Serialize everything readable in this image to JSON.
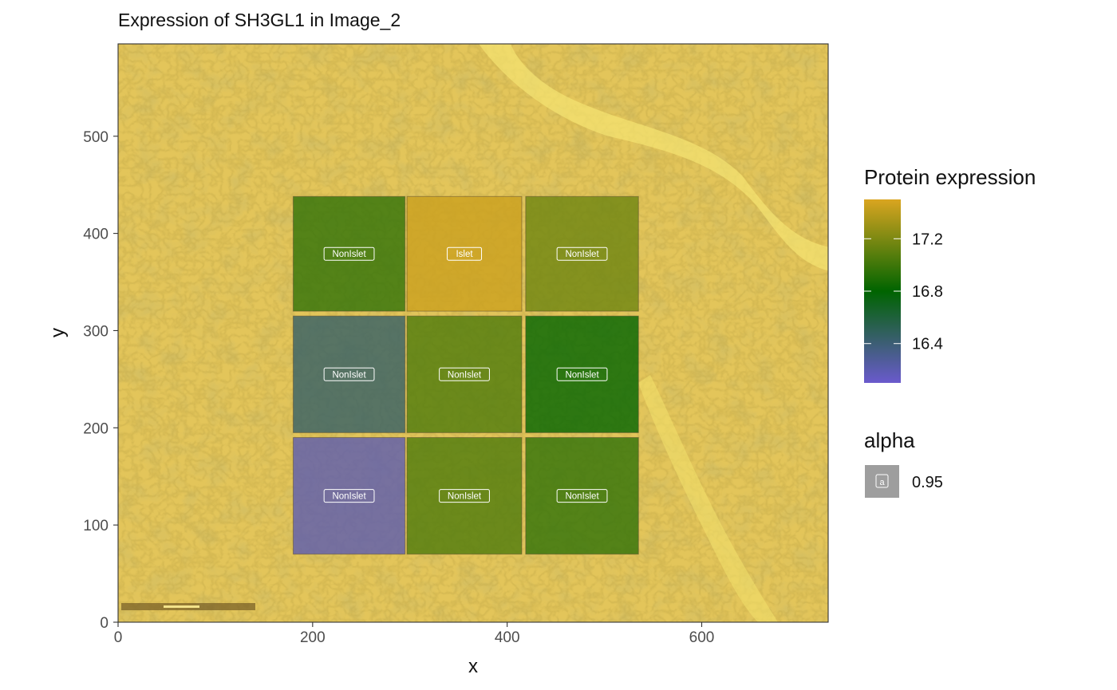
{
  "chart_data": {
    "type": "heatmap",
    "title": "Expression of SH3GL1 in Image_2",
    "xlabel": "x",
    "ylabel": "y",
    "xlim": [
      0,
      730
    ],
    "ylim": [
      0,
      595
    ],
    "x_ticks": [
      0,
      200,
      400,
      600
    ],
    "y_ticks": [
      0,
      100,
      200,
      300,
      400,
      500
    ],
    "background": "tissue image (pancreas section)",
    "regions": [
      {
        "label": "NonIslet",
        "x0": 180,
        "x1": 295,
        "y0": 320,
        "y1": 438,
        "value": 16.95
      },
      {
        "label": "Islet",
        "x0": 297,
        "x1": 415,
        "y0": 320,
        "y1": 438,
        "value": 17.45
      },
      {
        "label": "NonIslet",
        "x0": 419,
        "x1": 535,
        "y0": 320,
        "y1": 438,
        "value": 17.15
      },
      {
        "label": "NonIslet",
        "x0": 180,
        "x1": 295,
        "y0": 195,
        "y1": 315,
        "value": 16.45
      },
      {
        "label": "NonIslet",
        "x0": 297,
        "x1": 415,
        "y0": 195,
        "y1": 315,
        "value": 17.05
      },
      {
        "label": "NonIslet",
        "x0": 419,
        "x1": 535,
        "y0": 195,
        "y1": 315,
        "value": 16.8
      },
      {
        "label": "NonIslet",
        "x0": 180,
        "x1": 295,
        "y0": 70,
        "y1": 190,
        "value": 16.2
      },
      {
        "label": "NonIslet",
        "x0": 297,
        "x1": 415,
        "y0": 70,
        "y1": 190,
        "value": 17.05
      },
      {
        "label": "NonIslet",
        "x0": 419,
        "x1": 535,
        "y0": 70,
        "y1": 190,
        "value": 16.95
      }
    ],
    "legend": {
      "placement": "right",
      "color_title": "Protein expression",
      "color_breaks": [
        17.2,
        16.8,
        16.4
      ],
      "color_breaks_text": [
        "17.2",
        "16.8",
        "16.4"
      ],
      "color_range": [
        16.1,
        17.5
      ],
      "color_stops": [
        {
          "value": 16.1,
          "color": "#6a5acd"
        },
        {
          "value": 16.8,
          "color": "#006400"
        },
        {
          "value": 17.5,
          "color": "#daa520"
        }
      ],
      "alpha_title": "alpha",
      "alpha_key_glyph": "a",
      "alpha_value": "0.95"
    }
  }
}
